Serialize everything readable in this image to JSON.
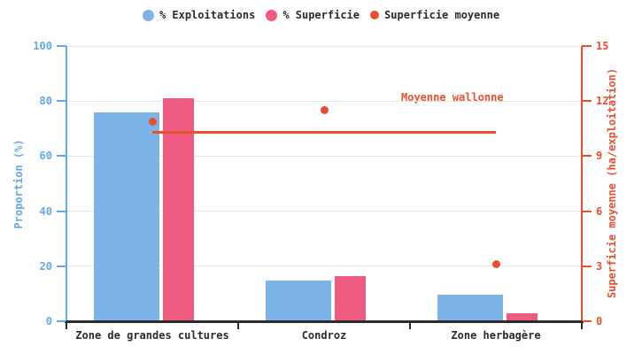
{
  "legend": {
    "items": [
      {
        "label": "% Exploitations",
        "color": "#7db4e8",
        "marker": "circle-large"
      },
      {
        "label": "% Superficie",
        "color": "#ef5b80",
        "marker": "circle-large"
      },
      {
        "label": "Superficie moyenne",
        "color": "#e94f2c",
        "marker": "circle-small"
      }
    ]
  },
  "chart_data": {
    "type": "bar",
    "categories": [
      "Zone de grandes cultures",
      "Condroz",
      "Zone herbagère"
    ],
    "series": [
      {
        "name": "% Exploitations",
        "type": "bar",
        "axis": "left",
        "color": "#7db4e8",
        "values": [
          75.8,
          14.8,
          9.5
        ]
      },
      {
        "name": "% Superficie",
        "type": "bar",
        "axis": "left",
        "color": "#ef5b80",
        "values": [
          80.9,
          16.3,
          2.9
        ]
      },
      {
        "name": "Superficie moyenne",
        "type": "scatter",
        "axis": "right",
        "color": "#e94f2c",
        "values": [
          10.9,
          11.5,
          3.1
        ]
      }
    ],
    "reference_line": {
      "label": "Moyenne wallonne",
      "value": 10.3,
      "axis": "right",
      "color": "#e94f2c"
    },
    "left_axis": {
      "label": "Proportion (%)",
      "min": 0,
      "max": 100,
      "ticks": [
        0,
        20,
        40,
        60,
        80,
        100
      ],
      "color": "#63a8e8"
    },
    "right_axis": {
      "label": "Superficie moyenne (ha/exploitation)",
      "min": 0,
      "max": 15,
      "ticks": [
        0,
        3,
        6,
        9,
        12,
        15
      ],
      "color": "#e94f2c"
    },
    "x_axis": {
      "color": "#2b2b2b"
    },
    "grid": true,
    "background": "#ffffff",
    "legend_position": "top-center"
  }
}
